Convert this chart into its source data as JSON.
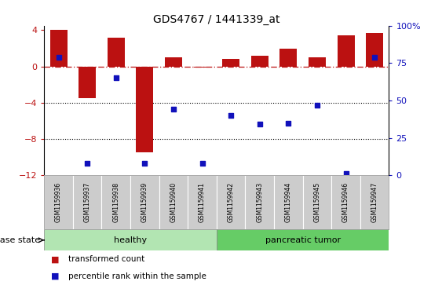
{
  "title": "GDS4767 / 1441339_at",
  "samples": [
    "GSM1159936",
    "GSM1159937",
    "GSM1159938",
    "GSM1159939",
    "GSM1159940",
    "GSM1159941",
    "GSM1159942",
    "GSM1159943",
    "GSM1159944",
    "GSM1159945",
    "GSM1159946",
    "GSM1159947"
  ],
  "bar_values": [
    4.0,
    -3.5,
    3.2,
    -9.5,
    1.0,
    -0.15,
    0.8,
    1.2,
    2.0,
    1.0,
    3.4,
    3.7
  ],
  "dot_values": [
    79,
    8,
    65,
    8,
    44,
    8,
    40,
    34,
    35,
    47,
    1,
    79
  ],
  "healthy_count": 6,
  "group_labels": [
    "healthy",
    "pancreatic tumor"
  ],
  "group_colors_healthy": "#b2e5b2",
  "group_colors_tumor": "#66cc66",
  "bar_color": "#bb1111",
  "dot_color": "#1111bb",
  "ylim_left": [
    -12,
    4.5
  ],
  "ylim_right": [
    0,
    100
  ],
  "yticks_left": [
    -12,
    -8,
    -4,
    0,
    4
  ],
  "yticks_right": [
    0,
    25,
    50,
    75,
    100
  ],
  "dotted_lines": [
    -4,
    -8
  ],
  "background_color": "#ffffff",
  "disease_state_label": "disease state",
  "sample_bg_color": "#cccccc",
  "legend_items": [
    "transformed count",
    "percentile rank within the sample"
  ]
}
